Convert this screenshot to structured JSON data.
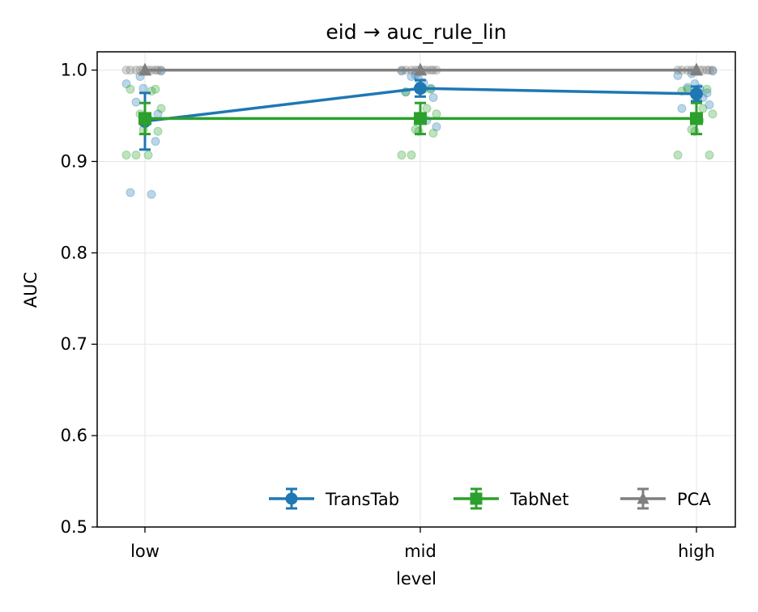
{
  "chart_data": {
    "type": "line",
    "title": "eid → auc_rule_lin",
    "xlabel": "level",
    "ylabel": "AUC",
    "categories": [
      "low",
      "mid",
      "high"
    ],
    "ylim": [
      0.5,
      1.02
    ],
    "yticks": [
      "0.5",
      "0.6",
      "0.7",
      "0.8",
      "0.9",
      "1.0"
    ],
    "grid": true,
    "legend_position": "lower-right",
    "series": [
      {
        "name": "TransTab",
        "color": "#1f77b4",
        "marker": "circle",
        "values": [
          0.944,
          0.98,
          0.974
        ],
        "errors": [
          0.031,
          0.009,
          0.008
        ],
        "points": [
          [
            0.985,
            0.965,
            0.947,
            0.922,
            0.866,
            0.864,
            0.999,
            0.993,
            0.98,
            0.952
          ],
          [
            0.999,
            0.993,
            0.986,
            0.98,
            0.976,
            0.945,
            0.938,
            0.995,
            0.99,
            0.97
          ],
          [
            0.994,
            0.981,
            0.98,
            0.975,
            0.958,
            0.97,
            0.999,
            0.996,
            0.985,
            0.962
          ]
        ]
      },
      {
        "name": "TabNet",
        "color": "#2ca02c",
        "marker": "square",
        "values": [
          0.947,
          0.947,
          0.947
        ],
        "errors": [
          0.017,
          0.017,
          0.017
        ],
        "points": [
          [
            0.979,
            0.979,
            0.977,
            0.958,
            0.952,
            0.935,
            0.933,
            0.907,
            0.907,
            0.907
          ],
          [
            0.979,
            0.976,
            0.958,
            0.952,
            0.935,
            0.933,
            0.931,
            0.907,
            0.907,
            0.979
          ],
          [
            0.979,
            0.977,
            0.958,
            0.952,
            0.935,
            0.933,
            0.907,
            0.907,
            0.979,
            0.945
          ]
        ]
      },
      {
        "name": "PCA",
        "color": "#7f7f7f",
        "marker": "triangle",
        "values": [
          1.0,
          1.0,
          1.0
        ],
        "errors": [
          0.0,
          0.0,
          0.0
        ],
        "points": [
          [
            1.0,
            1.0,
            1.0,
            1.0,
            1.0,
            1.0,
            1.0,
            1.0,
            1.0,
            1.0
          ],
          [
            1.0,
            1.0,
            1.0,
            1.0,
            1.0,
            1.0,
            1.0,
            1.0,
            1.0,
            1.0
          ],
          [
            1.0,
            1.0,
            1.0,
            1.0,
            1.0,
            1.0,
            1.0,
            1.0,
            1.0,
            1.0
          ]
        ]
      }
    ]
  }
}
